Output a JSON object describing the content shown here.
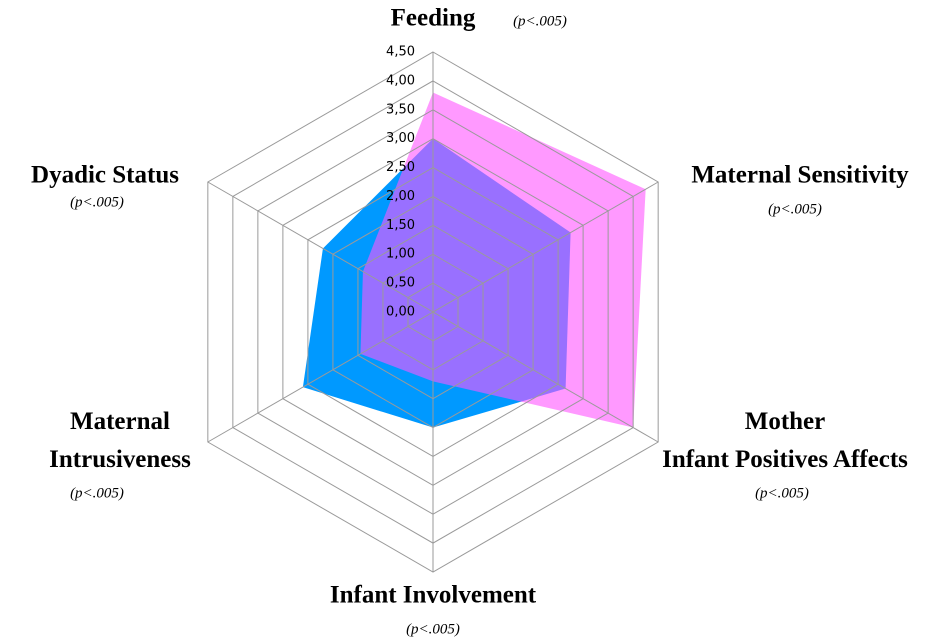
{
  "chart_data": {
    "type": "radar",
    "categories": [
      "Feeding",
      "Maternal Sensitivity",
      "Mother Infant Positives Affects",
      "Infant Involvement",
      "Maternal Intrusiveness",
      "Dyadic Status"
    ],
    "annotations": [
      "(p<.005)",
      "(p<.005)",
      "(p<.005)",
      "(p<.005)",
      "(p<.005)",
      "(p<.005)"
    ],
    "series": [
      {
        "color": "#0099ff",
        "values": [
          3.0,
          2.75,
          2.65,
          2.0,
          2.6,
          2.2
        ]
      },
      {
        "color": "#ff55ff",
        "values": [
          3.8,
          4.25,
          4.0,
          1.2,
          1.45,
          1.4
        ]
      }
    ],
    "ylim": [
      0,
      4.5
    ],
    "yticks": [
      {
        "value": 0,
        "label": "0,00"
      },
      {
        "value": 0.5,
        "label": "0,50"
      },
      {
        "value": 1,
        "label": "1,00"
      },
      {
        "value": 1.5,
        "label": "1,50"
      },
      {
        "value": 2,
        "label": "2,00"
      },
      {
        "value": 2.5,
        "label": "2,50"
      },
      {
        "value": 3,
        "label": "3,00"
      },
      {
        "value": 3.5,
        "label": "3,50"
      },
      {
        "value": 4,
        "label": "4,00"
      },
      {
        "value": 4.5,
        "label": "4,50"
      }
    ],
    "grid": true
  }
}
